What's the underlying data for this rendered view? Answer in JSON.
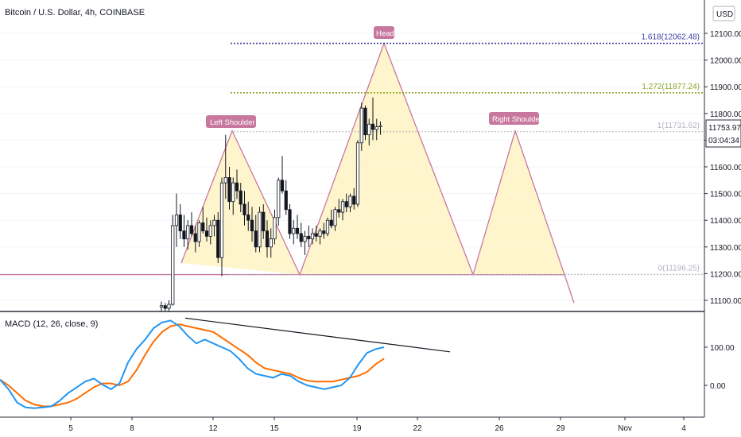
{
  "header": {
    "symbol_title": "Bitcoin / U.S. Dollar, 4h, COINBASE",
    "currency_badge": "USD",
    "close_icon": "close-icon",
    "badge_color": "#b2b5be"
  },
  "macd_panel": {
    "label": "MACD (12, 26, close, 9)",
    "macd_color": "#2196f3",
    "signal_color": "#ff6d00",
    "y_ticks": [
      "100.00",
      "0.00"
    ]
  },
  "price_axis": {
    "ticks": [
      "12100.00",
      "12000.00",
      "11900.00",
      "11800.00",
      "11700.00",
      "11600.00",
      "11500.00",
      "11400.00",
      "11300.00",
      "11200.00",
      "11100.00"
    ],
    "current_price": "11753.97",
    "countdown": "03:04:34"
  },
  "time_axis": {
    "ticks": [
      "5",
      "8",
      "12",
      "15",
      "19",
      "22",
      "26",
      "29",
      "Nov",
      "4"
    ]
  },
  "fib_levels": [
    {
      "label": "1.618(12062.48)",
      "price": 12062.48,
      "color": "#3f3fa3"
    },
    {
      "label": "1.272(11877.24)",
      "price": 11877.24,
      "color": "#8aa826"
    },
    {
      "label": "1(11731.62)",
      "price": 11731.62,
      "color": "#b2b5be"
    },
    {
      "label": "0(11196.25)",
      "price": 11196.25,
      "color": "#b2b5be"
    }
  ],
  "pattern_labels": {
    "left_shoulder": "Left Shoulder",
    "head": "Head",
    "right_shoulder": "Right Shoulder",
    "color": "#c8789e"
  },
  "chart_data": {
    "type": "candlestick",
    "series_name": "Bitcoin / U.S. Dollar, 4h, COINBASE",
    "price_range": [
      11050,
      12160
    ],
    "candles_ohlc": [
      [
        11075,
        11095,
        11060,
        11080
      ],
      [
        11080,
        11090,
        11060,
        11070
      ],
      [
        11070,
        11100,
        11060,
        11085
      ],
      [
        11085,
        11420,
        11080,
        11380
      ],
      [
        11380,
        11500,
        11300,
        11420
      ],
      [
        11420,
        11460,
        11330,
        11360
      ],
      [
        11360,
        11420,
        11300,
        11330
      ],
      [
        11330,
        11400,
        11290,
        11380
      ],
      [
        11380,
        11430,
        11340,
        11350
      ],
      [
        11350,
        11380,
        11280,
        11320
      ],
      [
        11320,
        11400,
        11300,
        11390
      ],
      [
        11390,
        11450,
        11350,
        11360
      ],
      [
        11360,
        11410,
        11320,
        11340
      ],
      [
        11340,
        11400,
        11310,
        11380
      ],
      [
        11380,
        11420,
        11340,
        11400
      ],
      [
        11400,
        11430,
        11240,
        11260
      ],
      [
        11260,
        11560,
        11190,
        11540
      ],
      [
        11540,
        11720,
        11480,
        11560
      ],
      [
        11560,
        11600,
        11440,
        11470
      ],
      [
        11470,
        11560,
        11420,
        11540
      ],
      [
        11540,
        11590,
        11480,
        11510
      ],
      [
        11510,
        11540,
        11430,
        11460
      ],
      [
        11460,
        11510,
        11380,
        11420
      ],
      [
        11420,
        11470,
        11360,
        11400
      ],
      [
        11400,
        11450,
        11320,
        11360
      ],
      [
        11360,
        11420,
        11280,
        11300
      ],
      [
        11300,
        11450,
        11280,
        11430
      ],
      [
        11430,
        11460,
        11330,
        11360
      ],
      [
        11360,
        11400,
        11260,
        11300
      ],
      [
        11300,
        11370,
        11260,
        11330
      ],
      [
        11330,
        11440,
        11310,
        11410
      ],
      [
        11410,
        11560,
        11380,
        11550
      ],
      [
        11550,
        11640,
        11500,
        11510
      ],
      [
        11510,
        11550,
        11420,
        11440
      ],
      [
        11440,
        11460,
        11330,
        11350
      ],
      [
        11350,
        11400,
        11310,
        11370
      ],
      [
        11370,
        11420,
        11330,
        11350
      ],
      [
        11350,
        11390,
        11300,
        11320
      ],
      [
        11320,
        11360,
        11270,
        11340
      ],
      [
        11340,
        11380,
        11300,
        11330
      ],
      [
        11330,
        11370,
        11310,
        11350
      ],
      [
        11350,
        11380,
        11320,
        11340
      ],
      [
        11340,
        11370,
        11310,
        11360
      ],
      [
        11360,
        11390,
        11330,
        11350
      ],
      [
        11350,
        11410,
        11340,
        11400
      ],
      [
        11400,
        11440,
        11370,
        11380
      ],
      [
        11380,
        11450,
        11360,
        11440
      ],
      [
        11440,
        11480,
        11410,
        11430
      ],
      [
        11430,
        11480,
        11400,
        11470
      ],
      [
        11470,
        11500,
        11430,
        11450
      ],
      [
        11450,
        11500,
        11430,
        11490
      ],
      [
        11490,
        11520,
        11440,
        11460
      ],
      [
        11460,
        11700,
        11450,
        11690
      ],
      [
        11690,
        11840,
        11660,
        11820
      ],
      [
        11820,
        11830,
        11700,
        11720
      ],
      [
        11720,
        11780,
        11680,
        11760
      ],
      [
        11760,
        11860,
        11700,
        11740
      ],
      [
        11740,
        11780,
        11700,
        11750
      ],
      [
        11750,
        11770,
        11720,
        11754
      ]
    ],
    "fib_retracement": [
      {
        "level": 1.618,
        "price": 12062.48
      },
      {
        "level": 1.272,
        "price": 11877.24
      },
      {
        "level": 1,
        "price": 11731.62
      },
      {
        "level": 0,
        "price": 11196.25
      }
    ],
    "head_and_shoulders_pattern": [
      {
        "point": "start",
        "price": 11240
      },
      {
        "point": "left_shoulder",
        "price": 11735
      },
      {
        "point": "trough",
        "price": 11196.25
      },
      {
        "point": "head",
        "price": 12062.48
      },
      {
        "point": "trough",
        "price": 11196.25
      },
      {
        "point": "right_shoulder",
        "price": 11735
      },
      {
        "point": "neckline",
        "price": 11196.25
      },
      {
        "point": "target",
        "price": 11090
      }
    ],
    "macd": {
      "y_range": [
        -75,
        175
      ],
      "macd_line": [
        15,
        -10,
        -45,
        -58,
        -60,
        -58,
        -55,
        -40,
        -20,
        -5,
        10,
        18,
        2,
        -10,
        5,
        60,
        95,
        120,
        150,
        165,
        170,
        155,
        130,
        110,
        120,
        110,
        100,
        90,
        70,
        45,
        30,
        25,
        20,
        30,
        25,
        10,
        0,
        -5,
        -10,
        -5,
        0,
        20,
        55,
        85,
        95,
        100
      ],
      "signal_line": [
        15,
        0,
        -20,
        -40,
        -50,
        -55,
        -55,
        -50,
        -45,
        -35,
        -20,
        -5,
        5,
        5,
        0,
        10,
        40,
        80,
        115,
        140,
        155,
        160,
        155,
        150,
        145,
        140,
        125,
        110,
        95,
        80,
        60,
        45,
        40,
        35,
        30,
        20,
        12,
        10,
        10,
        10,
        15,
        20,
        25,
        35,
        55,
        70
      ],
      "divergence_line": [
        {
          "value": 170
        },
        {
          "value": 90
        }
      ]
    }
  }
}
